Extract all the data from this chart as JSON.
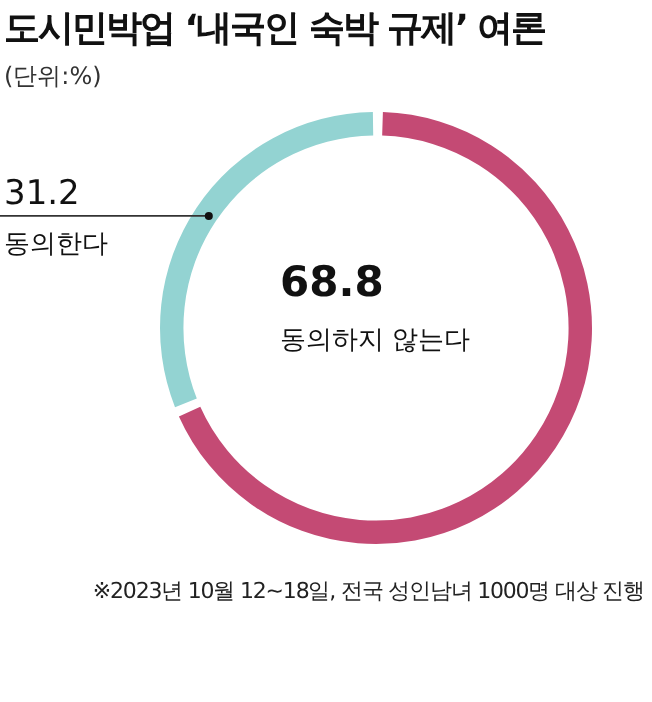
{
  "chart_data": {
    "type": "donut",
    "title": "도시민박업 ‘내국인 숙박 규제’ 여론",
    "subtitle": "(단위:%)",
    "categories": [
      "동의하지 않는다",
      "동의한다"
    ],
    "values": [
      68.8,
      31.2
    ],
    "colors": [
      "#c44a74",
      "#93d3d2"
    ],
    "data_labels": true,
    "annotations": [
      "※2023년 10월 12~18일, 전국 성인남녀 1000명 대상 진행"
    ]
  }
}
